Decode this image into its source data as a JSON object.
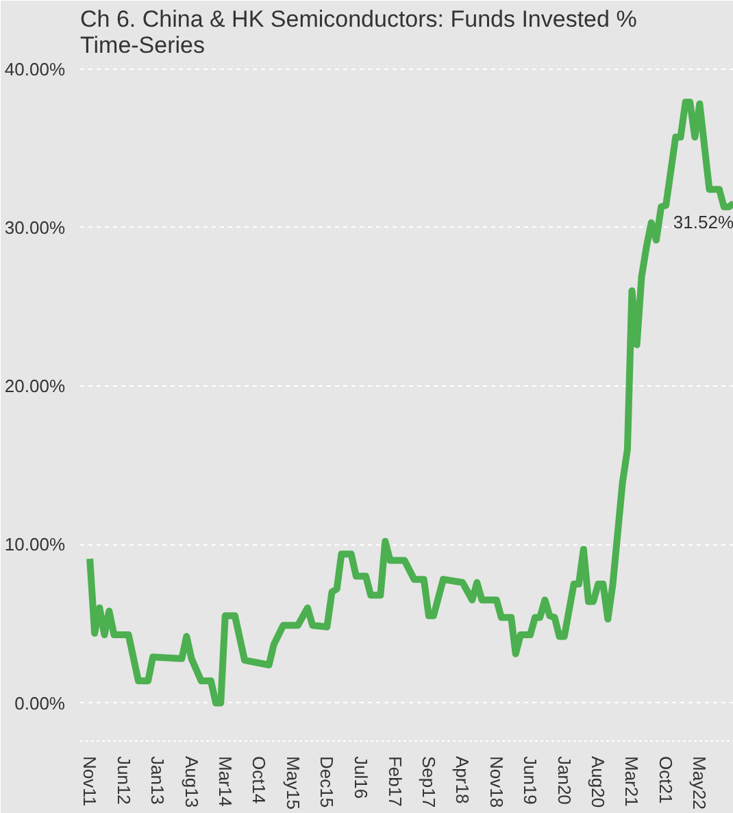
{
  "chart_data": {
    "type": "line",
    "title": "Ch 6. China & HK Semiconductors:  Funds Invested %\nTime-Series",
    "x": [
      "2011-11",
      "2011-12",
      "2012-01",
      "2012-02",
      "2012-03",
      "2012-04",
      "2012-07",
      "2012-09",
      "2012-11",
      "2012-12",
      "2013-06",
      "2013-07",
      "2013-08",
      "2013-10",
      "2013-12",
      "2014-01",
      "2014-02",
      "2014-03",
      "2014-05",
      "2014-07",
      "2014-12",
      "2015-01",
      "2015-03",
      "2015-06",
      "2015-08",
      "2015-09",
      "2015-12",
      "2016-01",
      "2016-02",
      "2016-03",
      "2016-05",
      "2016-06",
      "2016-08",
      "2016-09",
      "2016-11",
      "2016-12",
      "2017-01",
      "2017-04",
      "2017-06",
      "2017-08",
      "2017-09",
      "2017-10",
      "2017-12",
      "2018-04",
      "2018-06",
      "2018-07",
      "2018-08",
      "2018-11",
      "2018-12",
      "2019-02",
      "2019-03",
      "2019-04",
      "2019-06",
      "2019-07",
      "2019-08",
      "2019-09",
      "2019-10",
      "2019-11",
      "2019-12",
      "2020-01",
      "2020-03",
      "2020-04",
      "2020-05",
      "2020-06",
      "2020-07",
      "2020-08",
      "2020-09",
      "2020-10",
      "2020-11",
      "2021-01",
      "2021-02",
      "2021-03",
      "2021-04",
      "2021-05",
      "2021-06",
      "2021-07",
      "2021-08",
      "2021-09",
      "2021-10",
      "2021-12",
      "2022-01",
      "2022-02",
      "2022-03",
      "2022-04",
      "2022-05",
      "2022-07",
      "2022-09",
      "2022-10",
      "2022-11",
      "2022-12"
    ],
    "series": [
      {
        "color": "#4caf50",
        "values": [
          9.1,
          4.4,
          6.0,
          4.3,
          5.8,
          4.3,
          4.3,
          1.4,
          1.4,
          2.9,
          2.8,
          4.2,
          2.8,
          1.4,
          1.4,
          0,
          0,
          5.5,
          5.5,
          2.7,
          2.4,
          3.7,
          4.9,
          4.9,
          6.0,
          4.9,
          4.8,
          7.0,
          7.2,
          9.4,
          9.4,
          8.0,
          8.0,
          6.8,
          6.8,
          10.2,
          9.0,
          9.0,
          7.8,
          7.8,
          5.5,
          5.5,
          7.8,
          7.6,
          6.5,
          7.6,
          6.5,
          6.5,
          5.4,
          5.4,
          3.1,
          4.3,
          4.3,
          5.4,
          5.4,
          6.5,
          5.5,
          5.4,
          4.2,
          4.2,
          7.5,
          7.5,
          9.7,
          6.4,
          6.4,
          7.5,
          7.5,
          5.3,
          7.5,
          13.9,
          16.0,
          26.0,
          22.6,
          26.9,
          28.8,
          30.3,
          29.2,
          31.3,
          31.4,
          35.7,
          35.7,
          37.9,
          37.9,
          35.7,
          37.8,
          32.4,
          32.4,
          31.3,
          31.3,
          31.52
        ]
      }
    ],
    "annotations": [
      {
        "text": "31.52%",
        "x": "2022-12",
        "y": 31.52
      }
    ],
    "xlim": [
      "2011-09",
      "2022-12"
    ],
    "xticks": [
      {
        "value": "2011-11",
        "label": "Nov11"
      },
      {
        "value": "2012-06",
        "label": "Jun12"
      },
      {
        "value": "2013-01",
        "label": "Jan13"
      },
      {
        "value": "2013-08",
        "label": "Aug13"
      },
      {
        "value": "2014-03",
        "label": "Mar14"
      },
      {
        "value": "2014-10",
        "label": "Oct14"
      },
      {
        "value": "2015-05",
        "label": "May15"
      },
      {
        "value": "2015-12",
        "label": "Dec15"
      },
      {
        "value": "2016-07",
        "label": "Jul16"
      },
      {
        "value": "2017-02",
        "label": "Feb17"
      },
      {
        "value": "2017-09",
        "label": "Sep17"
      },
      {
        "value": "2018-04",
        "label": "Apr18"
      },
      {
        "value": "2018-11",
        "label": "Nov18"
      },
      {
        "value": "2019-06",
        "label": "Jun19"
      },
      {
        "value": "2020-01",
        "label": "Jan20"
      },
      {
        "value": "2020-08",
        "label": "Aug20"
      },
      {
        "value": "2021-03",
        "label": "Mar21"
      },
      {
        "value": "2021-10",
        "label": "Oct21"
      },
      {
        "value": "2022-05",
        "label": "May22"
      }
    ],
    "ylim": [
      -2.4,
      40.5
    ],
    "yticks": [
      {
        "value": 0,
        "label": "0.00%"
      },
      {
        "value": 10,
        "label": "10.00%"
      },
      {
        "value": 20,
        "label": "20.00%"
      },
      {
        "value": 30,
        "label": "30.00%"
      },
      {
        "value": 40,
        "label": "40.00%"
      }
    ],
    "grid": "y",
    "marker": "none",
    "line_style": "solid"
  }
}
